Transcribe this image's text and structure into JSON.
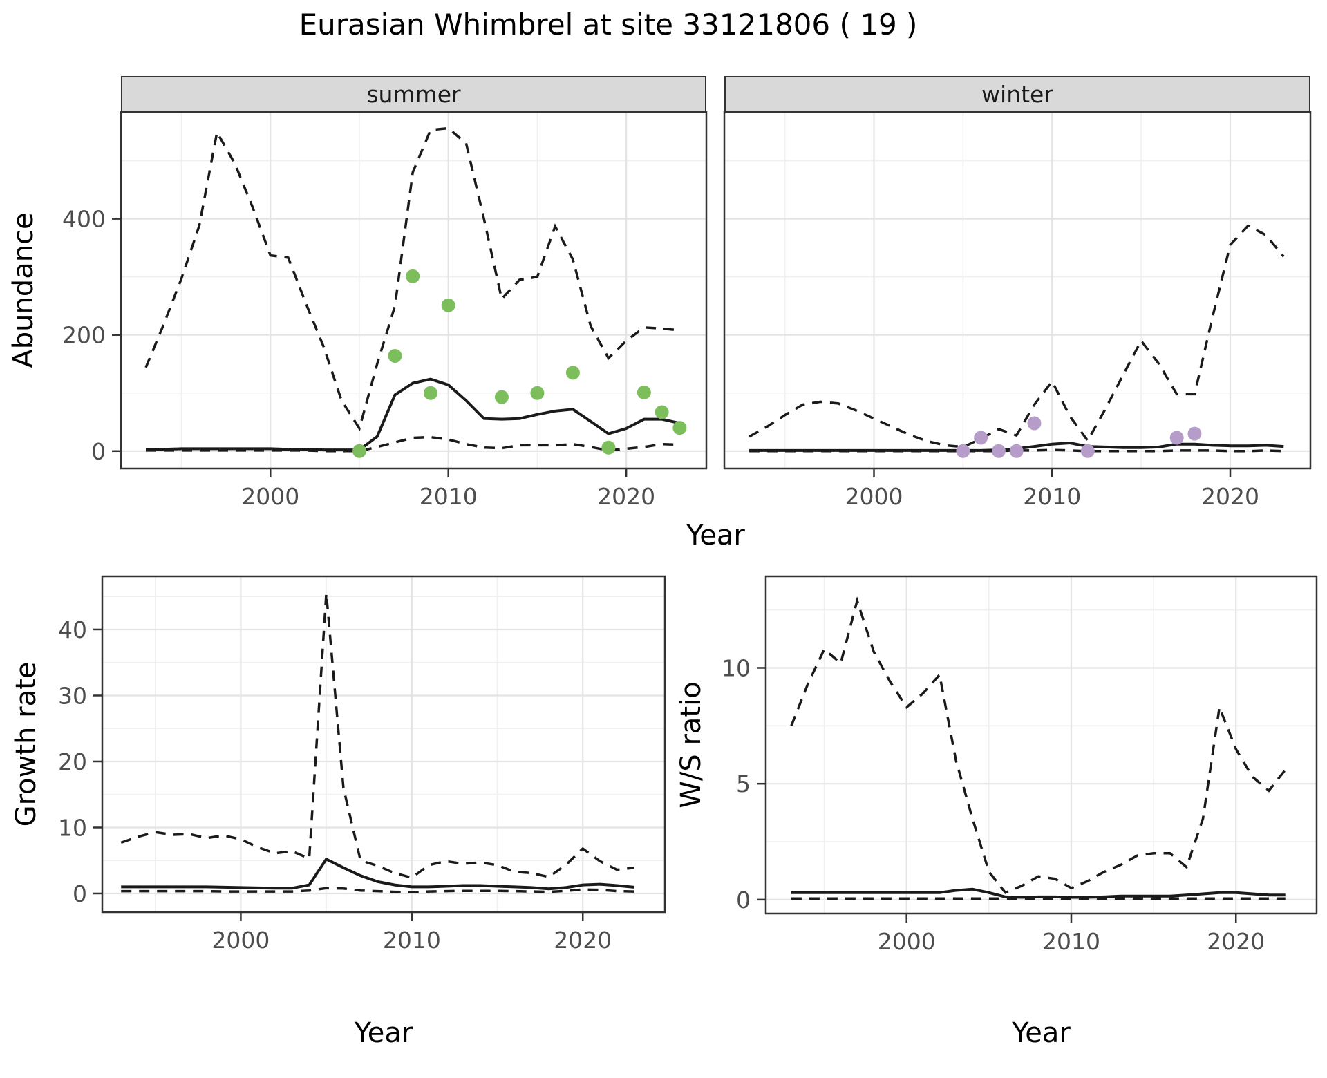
{
  "title": "Eurasian Whimbrel at site 33121806 ( 19 )",
  "labels": {
    "year": "Year",
    "abundance": "Abundance",
    "growth": "Growth rate",
    "ws": "W/S ratio",
    "facet_summer": "summer",
    "facet_winter": "winter"
  },
  "colors": {
    "summer_points": "#7cbe5c",
    "winter_points": "#b69cc9",
    "line": "#1a1a1a",
    "grid_major": "#e4e4e4",
    "grid_minor": "#f0f0f0",
    "strip_bg": "#d9d9d9",
    "panel_border": "#333333",
    "tick_text": "#4d4d4d"
  },
  "chart_data": [
    {
      "id": "summer_abundance",
      "type": "line",
      "facet": "summer",
      "xlabel": "Year",
      "ylabel": "Abundance",
      "x": [
        1993,
        1994,
        1995,
        1996,
        1997,
        1998,
        1999,
        2000,
        2001,
        2002,
        2003,
        2004,
        2005,
        2006,
        2007,
        2008,
        2009,
        2010,
        2011,
        2012,
        2013,
        2014,
        2015,
        2016,
        2017,
        2018,
        2019,
        2020,
        2021,
        2022,
        2023
      ],
      "series": [
        {
          "name": "upper_ci",
          "style": "dashed",
          "values": [
            144,
            218,
            297,
            388,
            549,
            495,
            420,
            337,
            333,
            254,
            179,
            87,
            39,
            150,
            250,
            480,
            553,
            556,
            530,
            400,
            262,
            295,
            300,
            387,
            330,
            215,
            160,
            190,
            213,
            211,
            208
          ]
        },
        {
          "name": "median",
          "style": "solid",
          "values": [
            3,
            3,
            4,
            4,
            4,
            4,
            4,
            4,
            3,
            3,
            2,
            2,
            2,
            25,
            97,
            117,
            124,
            114,
            87,
            56,
            55,
            56,
            63,
            69,
            72,
            51,
            30,
            39,
            55,
            55,
            48
          ]
        },
        {
          "name": "lower_ci",
          "style": "dashed",
          "values": [
            1,
            1,
            1,
            1,
            1,
            1,
            1,
            1,
            1,
            1,
            0,
            0,
            0,
            7,
            15,
            23,
            24,
            20,
            12,
            6,
            5,
            10,
            10,
            10,
            12,
            7,
            1,
            4,
            7,
            12,
            11
          ]
        }
      ],
      "points": {
        "name": "observed_counts",
        "color_key": "summer_points",
        "data": [
          [
            2005,
            0
          ],
          [
            2007,
            164
          ],
          [
            2008,
            301
          ],
          [
            2009,
            100
          ],
          [
            2010,
            251
          ],
          [
            2013,
            93
          ],
          [
            2015,
            100
          ],
          [
            2017,
            135
          ],
          [
            2019,
            6
          ],
          [
            2021,
            101
          ],
          [
            2022,
            67
          ],
          [
            2023,
            40
          ]
        ]
      },
      "xlim": [
        1991.6,
        2024.5
      ],
      "ylim": [
        -30,
        584
      ],
      "xticks": [
        2000,
        2010,
        2020
      ],
      "yticks": [
        0,
        200,
        400
      ],
      "xminor": [
        1995,
        2005,
        2015
      ],
      "yminor": [
        100,
        300,
        500
      ],
      "grid": true,
      "legend": "none"
    },
    {
      "id": "winter_abundance",
      "type": "line",
      "facet": "winter",
      "xlabel": "Year",
      "ylabel": "Abundance",
      "x": [
        1993,
        1994,
        1995,
        1996,
        1997,
        1998,
        1999,
        2000,
        2001,
        2002,
        2003,
        2004,
        2005,
        2006,
        2007,
        2008,
        2009,
        2010,
        2011,
        2012,
        2013,
        2014,
        2015,
        2016,
        2017,
        2018,
        2019,
        2020,
        2021,
        2022,
        2023
      ],
      "series": [
        {
          "name": "upper_ci",
          "style": "dashed",
          "values": [
            25,
            42,
            62,
            80,
            85,
            82,
            70,
            56,
            42,
            28,
            17,
            10,
            7,
            21,
            38,
            27,
            80,
            120,
            60,
            18,
            73,
            132,
            190,
            150,
            98,
            98,
            230,
            355,
            388,
            372,
            335
          ]
        },
        {
          "name": "median",
          "style": "solid",
          "values": [
            1,
            1,
            1,
            1,
            1,
            1,
            1,
            1,
            1,
            1,
            1,
            1,
            1,
            1,
            2,
            4,
            8,
            12,
            14,
            8,
            7,
            6,
            6,
            7,
            12,
            12,
            10,
            9,
            9,
            10,
            8
          ]
        },
        {
          "name": "lower_ci",
          "style": "dashed",
          "values": [
            0,
            0,
            0,
            0,
            0,
            0,
            0,
            0,
            0,
            0,
            0,
            0,
            0,
            0,
            0,
            1,
            1,
            2,
            1,
            0,
            0,
            0,
            0,
            0,
            1,
            1,
            1,
            0,
            0,
            1,
            0
          ]
        }
      ],
      "points": {
        "name": "observed_counts",
        "color_key": "winter_points",
        "data": [
          [
            2005,
            0
          ],
          [
            2006,
            23
          ],
          [
            2007,
            0
          ],
          [
            2008,
            0
          ],
          [
            2009,
            48
          ],
          [
            2012,
            0
          ],
          [
            2017,
            23
          ],
          [
            2018,
            30
          ]
        ]
      },
      "xlim": [
        1991.6,
        2024.5
      ],
      "ylim": [
        -30,
        584
      ],
      "xticks": [
        2000,
        2010,
        2020
      ],
      "yticks": [
        0,
        200,
        400
      ],
      "xminor": [
        1995,
        2005,
        2015
      ],
      "yminor": [
        100,
        300,
        500
      ],
      "grid": true,
      "legend": "none",
      "ytick_labels": false
    },
    {
      "id": "growth_rate",
      "type": "line",
      "facet": "",
      "xlabel": "Year",
      "ylabel": "Growth rate",
      "x": [
        1993,
        1994,
        1995,
        1996,
        1997,
        1998,
        1999,
        2000,
        2001,
        2002,
        2003,
        2004,
        2005,
        2006,
        2007,
        2008,
        2009,
        2010,
        2011,
        2012,
        2013,
        2014,
        2015,
        2016,
        2017,
        2018,
        2019,
        2020,
        2021,
        2022,
        2023
      ],
      "series": [
        {
          "name": "upper_ci",
          "style": "dashed",
          "values": [
            7.7,
            8.6,
            9.3,
            8.9,
            9.0,
            8.4,
            8.8,
            8.2,
            7.0,
            6.1,
            6.4,
            5.3,
            45.5,
            16,
            5.0,
            4.2,
            3.1,
            2.4,
            4.3,
            4.9,
            4.5,
            4.7,
            4.3,
            3.3,
            3.1,
            2.5,
            4.3,
            6.8,
            4.9,
            3.6,
            3.9
          ]
        },
        {
          "name": "median",
          "style": "solid",
          "values": [
            1.0,
            1.0,
            1.0,
            1.0,
            1.0,
            1.0,
            0.95,
            0.9,
            0.85,
            0.8,
            0.8,
            1.3,
            5.2,
            3.9,
            2.7,
            1.8,
            1.3,
            1.0,
            1.0,
            1.1,
            1.2,
            1.2,
            1.1,
            1.0,
            0.9,
            0.7,
            0.9,
            1.3,
            1.4,
            1.2,
            0.95
          ]
        },
        {
          "name": "lower_ci",
          "style": "dashed",
          "values": [
            0.35,
            0.35,
            0.35,
            0.35,
            0.35,
            0.35,
            0.3,
            0.3,
            0.3,
            0.3,
            0.3,
            0.45,
            0.8,
            0.75,
            0.45,
            0.35,
            0.25,
            0.2,
            0.3,
            0.35,
            0.4,
            0.4,
            0.4,
            0.35,
            0.3,
            0.25,
            0.4,
            0.6,
            0.55,
            0.35,
            0.3
          ]
        }
      ],
      "points": null,
      "xlim": [
        1991.9,
        2024.8
      ],
      "ylim": [
        -2.83,
        48.06
      ],
      "xticks": [
        2000,
        2010,
        2020
      ],
      "yticks": [
        0,
        10,
        20,
        30,
        40
      ],
      "xminor": [
        1995,
        2005,
        2015
      ],
      "yminor": [
        5,
        15,
        25,
        35,
        45
      ],
      "grid": true,
      "legend": "none"
    },
    {
      "id": "ws_ratio",
      "type": "line",
      "facet": "",
      "xlabel": "Year",
      "ylabel": "W/S ratio",
      "x": [
        1993,
        1994,
        1995,
        1996,
        1997,
        1998,
        1999,
        2000,
        2001,
        2002,
        2003,
        2004,
        2005,
        2006,
        2007,
        2008,
        2009,
        2010,
        2011,
        2012,
        2013,
        2014,
        2015,
        2016,
        2017,
        2018,
        2019,
        2020,
        2021,
        2022,
        2023
      ],
      "series": [
        {
          "name": "upper_ci",
          "style": "dashed",
          "values": [
            7.5,
            9.3,
            10.8,
            10.2,
            12.9,
            10.7,
            9.4,
            8.3,
            8.9,
            9.7,
            6.0,
            3.5,
            1.2,
            0.3,
            0.6,
            1.0,
            0.9,
            0.5,
            0.8,
            1.2,
            1.5,
            1.9,
            2.0,
            2.0,
            1.4,
            3.5,
            8.3,
            6.5,
            5.3,
            4.7,
            5.6
          ]
        },
        {
          "name": "median",
          "style": "solid",
          "values": [
            0.3,
            0.3,
            0.3,
            0.3,
            0.3,
            0.3,
            0.3,
            0.3,
            0.3,
            0.3,
            0.4,
            0.45,
            0.3,
            0.12,
            0.1,
            0.12,
            0.12,
            0.1,
            0.1,
            0.12,
            0.15,
            0.15,
            0.15,
            0.15,
            0.2,
            0.25,
            0.3,
            0.3,
            0.25,
            0.2,
            0.2
          ]
        },
        {
          "name": "lower_ci",
          "style": "dashed",
          "values": [
            0.05,
            0.05,
            0.05,
            0.05,
            0.05,
            0.05,
            0.05,
            0.05,
            0.05,
            0.05,
            0.05,
            0.05,
            0.05,
            0.05,
            0.05,
            0.05,
            0.05,
            0.05,
            0.05,
            0.05,
            0.05,
            0.05,
            0.05,
            0.05,
            0.05,
            0.05,
            0.05,
            0.05,
            0.05,
            0.05,
            0.05
          ]
        }
      ],
      "points": null,
      "xlim": [
        1991.45,
        2024.9
      ],
      "ylim": [
        -0.6,
        13.95
      ],
      "xticks": [
        2000,
        2010,
        2020
      ],
      "yticks": [
        0,
        5,
        10
      ],
      "xminor": [
        1995,
        2005,
        2015
      ],
      "yminor": [
        2.5,
        7.5,
        12.5
      ],
      "grid": true,
      "legend": "none"
    }
  ]
}
